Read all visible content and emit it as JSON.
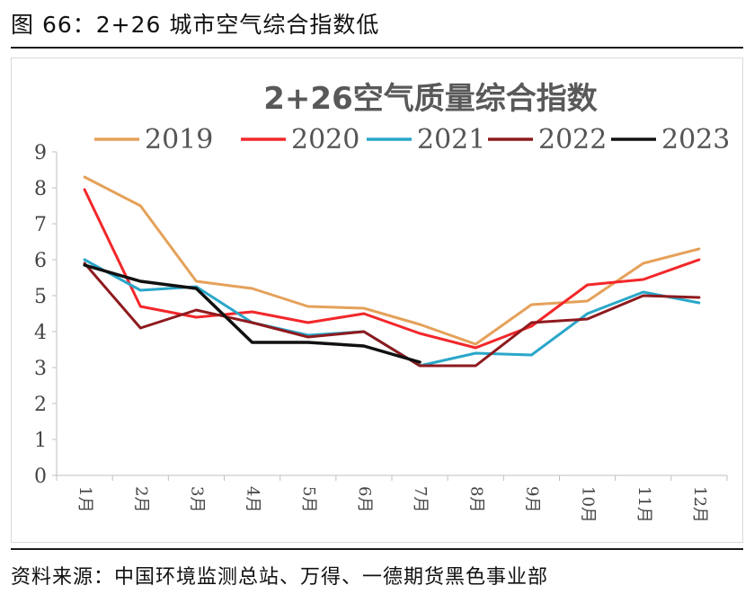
{
  "figure_title": "图 66：2+26 城市空气综合指数低",
  "source": "资料来源：中国环境监测总站、万得、一德期货黑色事业部",
  "chart_data": {
    "type": "line",
    "title": "2+26空气质量综合指数",
    "xlabel": "",
    "ylabel": "",
    "ylim": [
      0,
      9
    ],
    "yticks": [
      0,
      1,
      2,
      3,
      4,
      5,
      6,
      7,
      8,
      9
    ],
    "categories": [
      "1月",
      "2月",
      "3月",
      "4月",
      "5月",
      "6月",
      "7月",
      "8月",
      "9月",
      "10月",
      "11月",
      "12月"
    ],
    "legend_position": "top",
    "grid": false,
    "series": [
      {
        "name": "2019",
        "color": "#E5A15A",
        "values": [
          8.3,
          7.5,
          5.4,
          5.2,
          4.7,
          4.65,
          4.2,
          3.65,
          4.75,
          4.85,
          5.9,
          6.3
        ]
      },
      {
        "name": "2020",
        "color": "#F2272A",
        "values": [
          7.95,
          4.7,
          4.4,
          4.55,
          4.25,
          4.5,
          3.95,
          3.55,
          4.15,
          5.3,
          5.45,
          6.0
        ]
      },
      {
        "name": "2021",
        "color": "#2AA7C9",
        "values": [
          6.0,
          5.15,
          5.25,
          4.25,
          3.9,
          4.0,
          3.05,
          3.4,
          3.35,
          4.5,
          5.1,
          4.8
        ]
      },
      {
        "name": "2022",
        "color": "#8E1A1E",
        "values": [
          5.9,
          4.1,
          4.6,
          4.25,
          3.85,
          4.0,
          3.05,
          3.05,
          4.25,
          4.35,
          5.0,
          4.95
        ]
      },
      {
        "name": "2023",
        "color": "#111111",
        "values": [
          5.85,
          5.4,
          5.2,
          3.7,
          3.7,
          3.6,
          3.15,
          null,
          null,
          null,
          null,
          null
        ]
      }
    ]
  }
}
